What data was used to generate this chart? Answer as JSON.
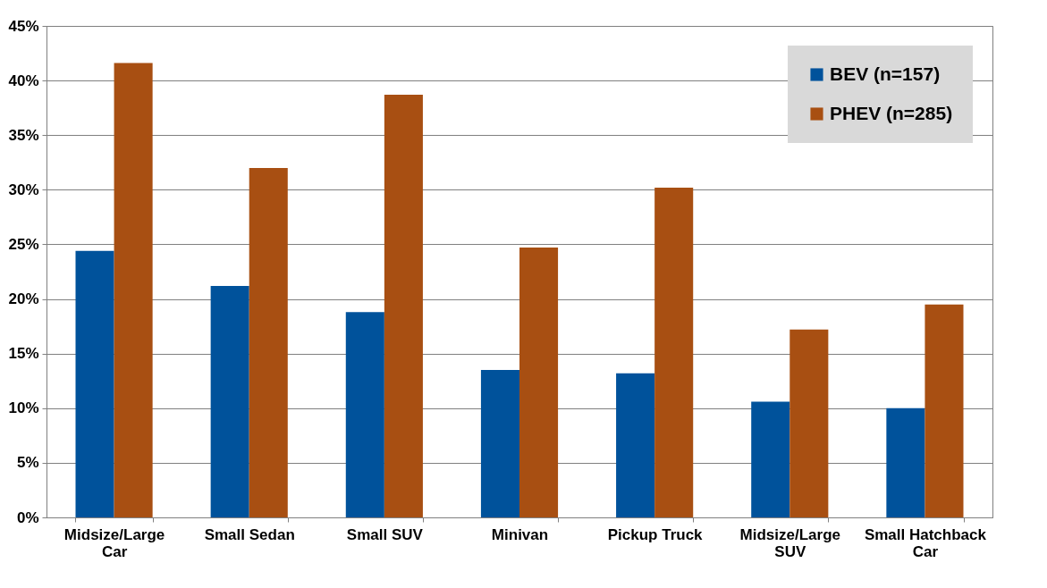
{
  "chart_data": {
    "type": "bar",
    "categories": [
      "Midsize/Large Car",
      "Small Sedan",
      "Small SUV",
      "Minivan",
      "Pickup Truck",
      "Midsize/Large SUV",
      "Small Hatchback Car"
    ],
    "series": [
      {
        "name": "BEV (n=157)",
        "color": "#00529b",
        "values": [
          24.4,
          21.2,
          18.8,
          13.5,
          13.2,
          10.6,
          10.0
        ]
      },
      {
        "name": "PHEV (n=285)",
        "color": "#a84f12",
        "values": [
          41.6,
          32.0,
          38.7,
          24.7,
          30.2,
          17.2,
          19.5
        ]
      }
    ],
    "ylim": [
      0,
      45
    ],
    "yticks": [
      {
        "value": 0,
        "label": "0%"
      },
      {
        "value": 5,
        "label": "5%"
      },
      {
        "value": 10,
        "label": "10%"
      },
      {
        "value": 15,
        "label": "15%"
      },
      {
        "value": 20,
        "label": "20%"
      },
      {
        "value": 25,
        "label": "25%"
      },
      {
        "value": 30,
        "label": "30%"
      },
      {
        "value": 35,
        "label": "35%"
      },
      {
        "value": 40,
        "label": "40%"
      },
      {
        "value": 45,
        "label": "45%"
      }
    ],
    "grid": "y",
    "legend": "top right"
  }
}
